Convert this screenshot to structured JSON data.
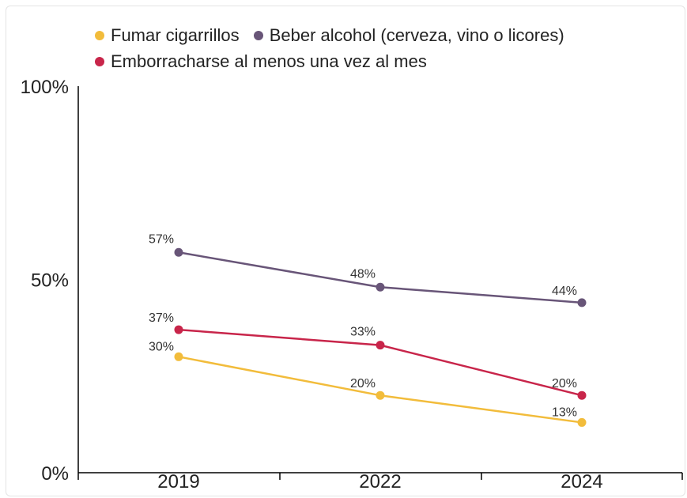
{
  "chart_data": {
    "type": "line",
    "categories": [
      "2019",
      "2022",
      "2024"
    ],
    "y_ticks": [
      "0%",
      "50%",
      "100%"
    ],
    "ylim": [
      0,
      100
    ],
    "legend_position": "top",
    "grid": false,
    "series": [
      {
        "name": "Fumar cigarrillos",
        "color": "#f2bc3b",
        "values": [
          30,
          20,
          13
        ],
        "labels": [
          "30%",
          "20%",
          "13%"
        ]
      },
      {
        "name": "Beber alcohol (cerveza, vino o licores)",
        "color": "#685578",
        "values": [
          57,
          48,
          44
        ],
        "labels": [
          "57%",
          "48%",
          "44%"
        ]
      },
      {
        "name": "Emborracharse al menos una vez al mes",
        "color": "#c8254a",
        "values": [
          37,
          33,
          20
        ],
        "labels": [
          "37%",
          "33%",
          "20%"
        ]
      }
    ]
  }
}
